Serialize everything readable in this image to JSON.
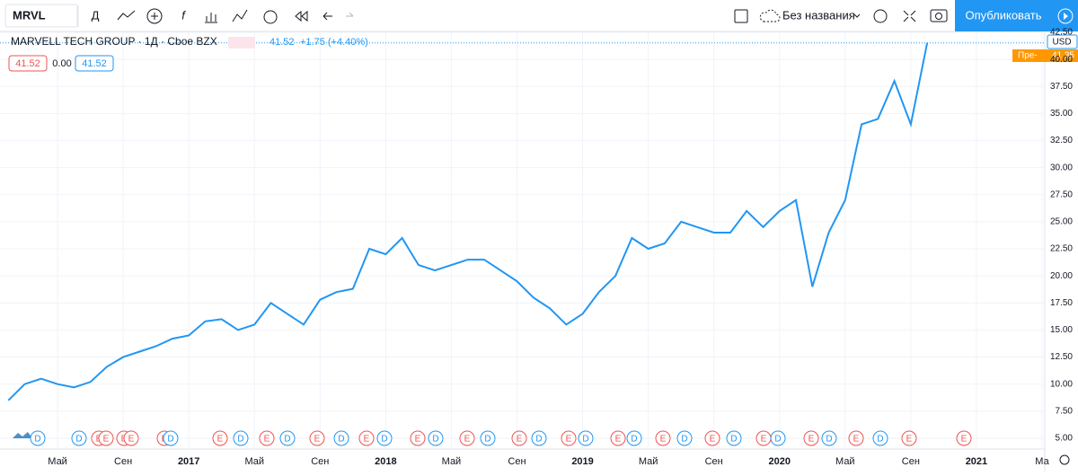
{
  "header": {
    "symbol": "MRVL",
    "interval": "Д",
    "layout_name": "Без названия",
    "publish": "Опубликовать"
  },
  "legend": {
    "title": "MARVELL TECH GROUP · 1Д · Cboe BZX",
    "last": "41.52",
    "change": "+1.75 (+4.40%)",
    "bid": "41.52",
    "spread": "0.00",
    "ask": "41.52"
  },
  "chart_data": {
    "type": "line",
    "color": "#2196f3",
    "grid": true,
    "x": [
      "2016-02",
      "2016-03",
      "2016-04",
      "2016-05",
      "2016-06",
      "2016-07",
      "2016-08",
      "2016-09",
      "2016-10",
      "2016-11",
      "2016-12",
      "2017-01",
      "2017-02",
      "2017-03",
      "2017-04",
      "2017-05",
      "2017-06",
      "2017-07",
      "2017-08",
      "2017-09",
      "2017-10",
      "2017-11",
      "2017-12",
      "2018-01",
      "2018-02",
      "2018-03",
      "2018-04",
      "2018-05",
      "2018-06",
      "2018-07",
      "2018-08",
      "2018-09",
      "2018-10",
      "2018-11",
      "2018-12",
      "2019-01",
      "2019-02",
      "2019-03",
      "2019-04",
      "2019-05",
      "2019-06",
      "2019-07",
      "2019-08",
      "2019-09",
      "2019-10",
      "2019-11",
      "2019-12",
      "2020-01",
      "2020-02",
      "2020-03",
      "2020-04",
      "2020-05",
      "2020-06",
      "2020-07",
      "2020-08",
      "2020-09",
      "2020-10"
    ],
    "values": [
      8.5,
      10.0,
      10.5,
      10.0,
      9.7,
      10.2,
      11.6,
      12.5,
      13.0,
      13.5,
      14.2,
      14.5,
      15.8,
      16.0,
      15.0,
      15.5,
      17.5,
      16.5,
      15.5,
      17.8,
      18.5,
      18.8,
      22.5,
      22.0,
      23.5,
      21.0,
      20.5,
      21.0,
      21.5,
      21.5,
      20.5,
      19.5,
      18.0,
      17.0,
      15.5,
      16.5,
      18.5,
      20.0,
      23.5,
      22.5,
      23.0,
      25.0,
      24.5,
      24.0,
      24.0,
      26.0,
      24.5,
      26.0,
      27.0,
      19.0,
      24.0,
      27.0,
      34.0,
      34.5,
      38.0,
      34.0,
      41.52
    ],
    "xlim": [
      "2016-01",
      "2021-05"
    ],
    "xticks": [
      {
        "value": "2016-05",
        "label": "Май"
      },
      {
        "value": "2016-09",
        "label": "Сен"
      },
      {
        "value": "2017-01",
        "label": "2017"
      },
      {
        "value": "2017-05",
        "label": "Май"
      },
      {
        "value": "2017-09",
        "label": "Сен"
      },
      {
        "value": "2018-01",
        "label": "2018"
      },
      {
        "value": "2018-05",
        "label": "Май"
      },
      {
        "value": "2018-09",
        "label": "Сен"
      },
      {
        "value": "2019-01",
        "label": "2019"
      },
      {
        "value": "2019-05",
        "label": "Май"
      },
      {
        "value": "2019-09",
        "label": "Сен"
      },
      {
        "value": "2020-01",
        "label": "2020"
      },
      {
        "value": "2020-05",
        "label": "Май"
      },
      {
        "value": "2020-09",
        "label": "Сен"
      },
      {
        "value": "2021-01",
        "label": "2021"
      },
      {
        "value": "2021-05",
        "label": "Ма"
      }
    ],
    "ylim": [
      4.0,
      42.5
    ],
    "yticks": [
      {
        "value": 5,
        "label": "5.00"
      },
      {
        "value": 7.5,
        "label": "7.50"
      },
      {
        "value": 10,
        "label": "10.00"
      },
      {
        "value": 12.5,
        "label": "12.50"
      },
      {
        "value": 15,
        "label": "15.00"
      },
      {
        "value": 17.5,
        "label": "17.50"
      },
      {
        "value": 20,
        "label": "20.00"
      },
      {
        "value": 22.5,
        "label": "22.50"
      },
      {
        "value": 25,
        "label": "25.00"
      },
      {
        "value": 27.5,
        "label": "27.50"
      },
      {
        "value": 30,
        "label": "30.00"
      },
      {
        "value": 32.5,
        "label": "32.50"
      },
      {
        "value": 35,
        "label": "35.00"
      },
      {
        "value": 37.5,
        "label": "37.50"
      },
      {
        "value": 40,
        "label": "40.00"
      },
      {
        "value": 42.5,
        "label": "42.50"
      }
    ],
    "currency": "USD",
    "premarket_label": "Пре-",
    "premarket_price": 41.35
  },
  "events": [
    "D",
    "D",
    "E",
    "E",
    "E",
    "E",
    "E",
    "D",
    "E",
    "D",
    "E",
    "D",
    "E",
    "D",
    "E",
    "D",
    "E",
    "D",
    "E",
    "D",
    "E",
    "D",
    "E",
    "D",
    "E",
    "D",
    "E",
    "D",
    "E",
    "D",
    "E",
    "D",
    "E",
    "D",
    "E",
    "D",
    "E",
    "E"
  ]
}
